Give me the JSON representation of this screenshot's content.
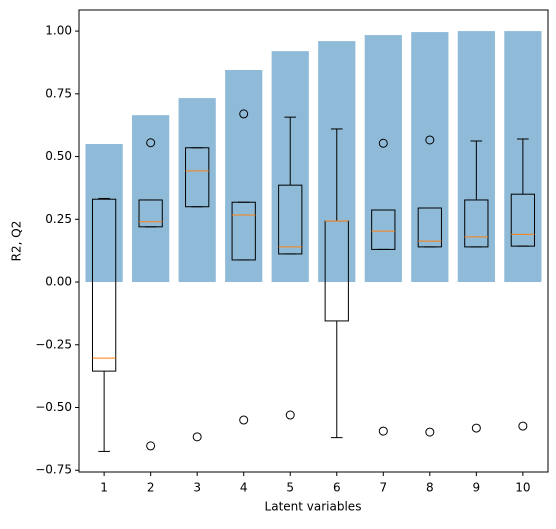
{
  "chart_data": {
    "type": "bar_box",
    "xlabel": "Latent variables",
    "ylabel": "R2, Q2",
    "x": [
      1,
      2,
      3,
      4,
      5,
      6,
      7,
      8,
      9,
      10
    ],
    "values": [
      0.55,
      0.665,
      0.733,
      0.845,
      0.92,
      0.96,
      0.984,
      0.996,
      1.0,
      1.0
    ],
    "color": "#8fbbd9",
    "box_color": "#000000",
    "median_color": "#ff7f0e",
    "boxes": [
      {
        "whislo": -0.675,
        "q1": -0.355,
        "med": -0.303,
        "q3": 0.33,
        "whishi": 0.333,
        "fliers": []
      },
      {
        "whislo": 0.22,
        "q1": 0.22,
        "med": 0.24,
        "q3": 0.327,
        "whishi": 0.327,
        "fliers": [
          0.555,
          -0.653
        ]
      },
      {
        "whislo": 0.3,
        "q1": 0.3,
        "med": 0.443,
        "q3": 0.535,
        "whishi": 0.535,
        "fliers": [
          -0.617
        ]
      },
      {
        "whislo": 0.088,
        "q1": 0.088,
        "med": 0.267,
        "q3": 0.318,
        "whishi": 0.318,
        "fliers": [
          0.67,
          -0.55
        ]
      },
      {
        "whislo": 0.112,
        "q1": 0.112,
        "med": 0.14,
        "q3": 0.386,
        "whishi": 0.657,
        "fliers": [
          -0.53
        ]
      },
      {
        "whislo": -0.62,
        "q1": -0.155,
        "med": 0.243,
        "q3": 0.243,
        "whishi": 0.61,
        "fliers": []
      },
      {
        "whislo": 0.13,
        "q1": 0.13,
        "med": 0.203,
        "q3": 0.287,
        "whishi": 0.287,
        "fliers": [
          0.553,
          -0.594
        ]
      },
      {
        "whislo": 0.14,
        "q1": 0.14,
        "med": 0.163,
        "q3": 0.295,
        "whishi": 0.295,
        "fliers": [
          0.566,
          -0.598
        ]
      },
      {
        "whislo": 0.14,
        "q1": 0.14,
        "med": 0.18,
        "q3": 0.327,
        "whishi": 0.562,
        "fliers": [
          -0.582
        ]
      },
      {
        "whislo": 0.143,
        "q1": 0.143,
        "med": 0.19,
        "q3": 0.35,
        "whishi": 0.57,
        "fliers": [
          -0.574
        ]
      }
    ],
    "xlim": [
      0.46,
      10.54
    ],
    "xticks": [
      1,
      2,
      3,
      4,
      5,
      6,
      7,
      8,
      9,
      10
    ],
    "ylim": [
      -0.757,
      1.084
    ],
    "yticks": [
      {
        "value": -0.75,
        "label": "−0.75"
      },
      {
        "value": -0.5,
        "label": "−0.50"
      },
      {
        "value": -0.25,
        "label": "−0.25"
      },
      {
        "value": 0,
        "label": "0.00"
      },
      {
        "value": 0.25,
        "label": "0.25"
      },
      {
        "value": 0.5,
        "label": "0.50"
      },
      {
        "value": 0.75,
        "label": "0.75"
      },
      {
        "value": 1,
        "label": "1.00"
      }
    ]
  }
}
